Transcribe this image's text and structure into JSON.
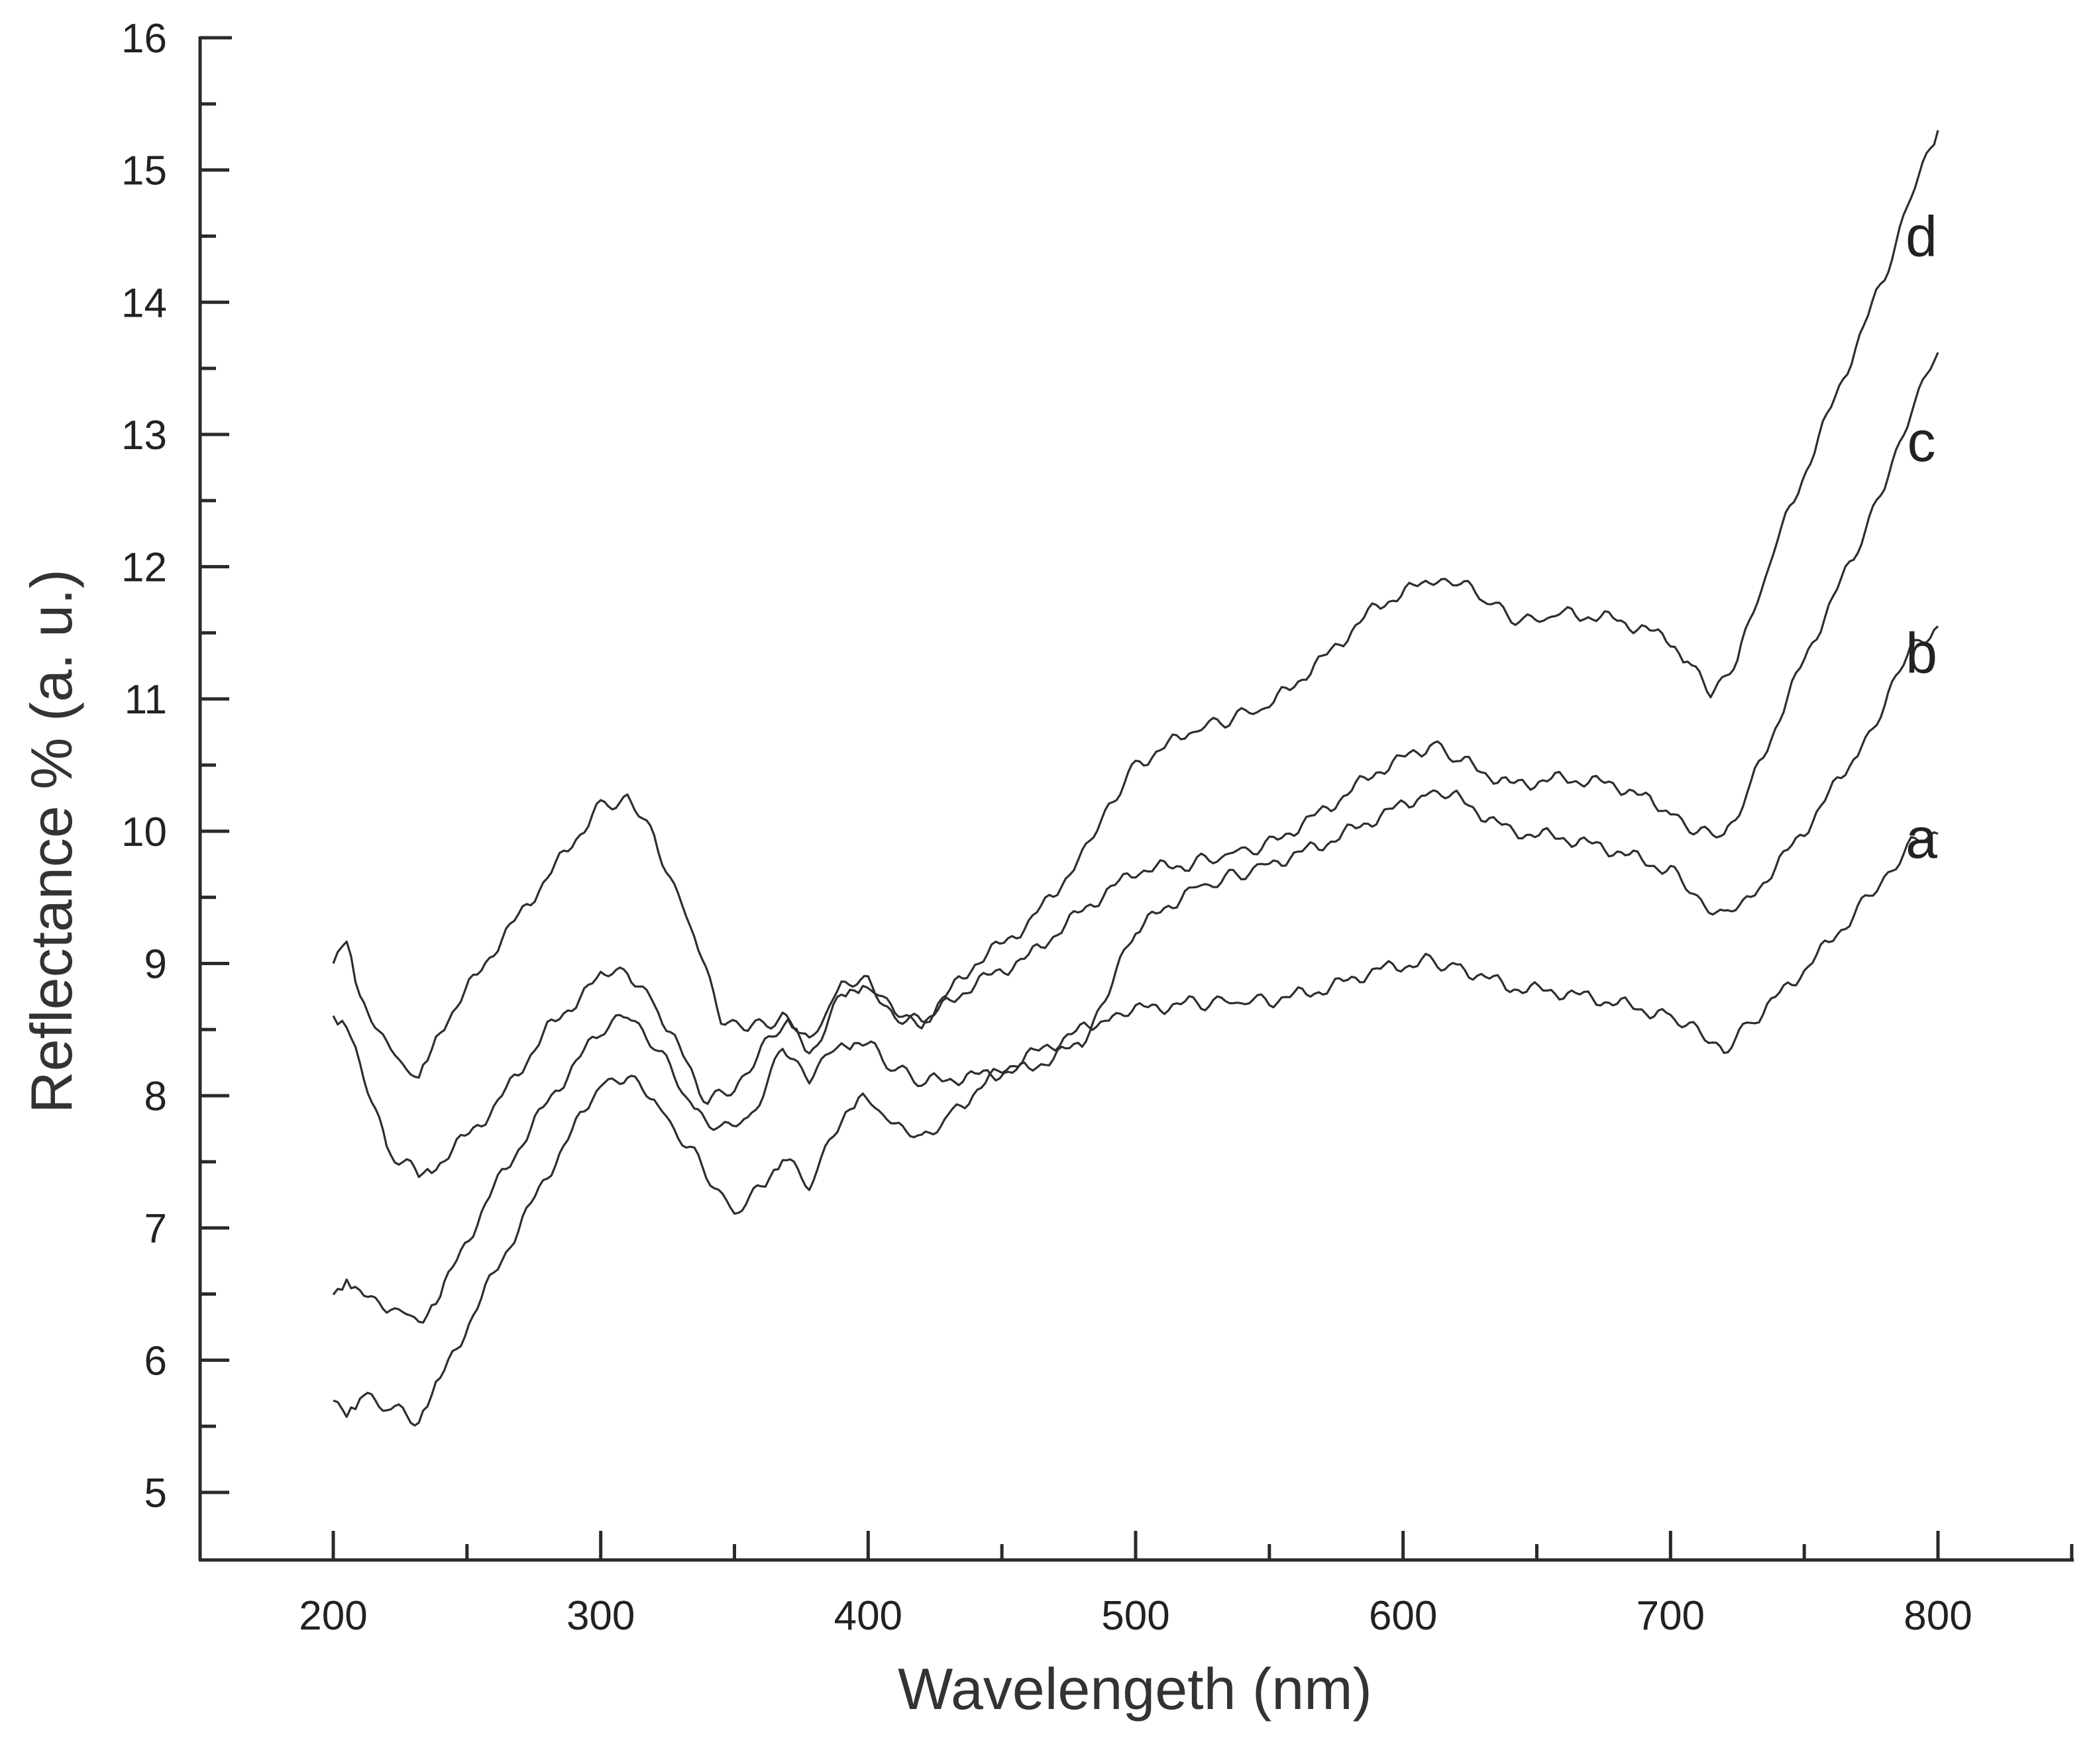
{
  "chart_data": {
    "type": "line",
    "title": "",
    "xlabel": "Wavelengeth (nm)",
    "ylabel": "Reflectance % (a. u.)",
    "xlim": [
      150,
      850
    ],
    "ylim": [
      4.5,
      16
    ],
    "x_ticks": [
      200,
      300,
      400,
      500,
      600,
      700,
      800
    ],
    "x_tick_labels": [
      "200",
      "300",
      "400",
      "500",
      "600",
      "700",
      "800"
    ],
    "y_ticks": [
      5,
      6,
      7,
      8,
      9,
      10,
      11,
      12,
      13,
      14,
      15,
      16
    ],
    "y_tick_labels": [
      "5",
      "6",
      "7",
      "8",
      "9",
      "10",
      "11",
      "12",
      "13",
      "14",
      "15",
      "16"
    ],
    "grid": false,
    "legend": "inline labels at right end of curves",
    "series": [
      {
        "name": "a",
        "label": "a",
        "x": [
          200,
          205,
          210,
          220,
          232,
          240,
          260,
          280,
          300,
          310,
          320,
          335,
          350,
          360,
          368,
          378,
          390,
          398,
          410,
          420,
          430,
          450,
          470,
          490,
          500,
          520,
          550,
          570,
          590,
          610,
          620,
          640,
          660,
          680,
          700,
          710,
          720,
          730,
          750,
          770,
          780,
          790,
          800
        ],
        "y": [
          5.75,
          5.62,
          5.72,
          5.65,
          5.55,
          5.85,
          6.65,
          7.4,
          8.1,
          8.15,
          7.95,
          7.55,
          7.1,
          7.3,
          7.55,
          7.3,
          7.85,
          7.98,
          7.8,
          7.65,
          7.85,
          8.2,
          8.4,
          8.6,
          8.65,
          8.7,
          8.72,
          8.8,
          8.95,
          9.02,
          8.98,
          8.82,
          8.78,
          8.7,
          8.6,
          8.48,
          8.35,
          8.55,
          8.95,
          9.4,
          9.65,
          9.9,
          9.98
        ]
      },
      {
        "name": "b",
        "label": "b",
        "x": [
          200,
          205,
          210,
          220,
          232,
          240,
          260,
          280,
          300,
          310,
          320,
          335,
          345,
          355,
          368,
          378,
          390,
          398,
          410,
          420,
          440,
          460,
          480,
          490,
          500,
          520,
          550,
          570,
          590,
          610,
          620,
          640,
          660,
          680,
          700,
          710,
          720,
          730,
          750,
          770,
          780,
          790,
          800
        ],
        "y": [
          6.5,
          6.6,
          6.55,
          6.4,
          6.3,
          6.5,
          7.3,
          7.95,
          8.5,
          8.6,
          8.4,
          7.9,
          7.75,
          7.8,
          8.35,
          8.15,
          8.4,
          8.42,
          8.2,
          8.1,
          8.15,
          8.2,
          8.4,
          8.8,
          9.25,
          9.55,
          9.75,
          9.9,
          10.1,
          10.3,
          10.25,
          10.0,
          9.95,
          9.85,
          9.7,
          9.5,
          9.35,
          9.5,
          10.0,
          10.6,
          10.95,
          11.4,
          11.55
        ]
      },
      {
        "name": "c",
        "label": "c",
        "x": [
          200,
          205,
          210,
          220,
          232,
          240,
          260,
          280,
          300,
          310,
          320,
          340,
          350,
          360,
          370,
          378,
          390,
          398,
          410,
          420,
          440,
          460,
          480,
          500,
          520,
          550,
          570,
          590,
          610,
          620,
          640,
          660,
          680,
          700,
          710,
          720,
          730,
          750,
          770,
          780,
          790,
          800
        ],
        "y": [
          8.55,
          8.5,
          8.25,
          7.6,
          7.4,
          7.5,
          7.9,
          8.5,
          8.9,
          8.95,
          8.7,
          7.95,
          8.05,
          8.35,
          8.55,
          8.3,
          8.75,
          8.85,
          8.65,
          8.55,
          8.85,
          9.05,
          9.4,
          9.7,
          9.75,
          9.9,
          10.15,
          10.45,
          10.65,
          10.55,
          10.35,
          10.4,
          10.35,
          10.15,
          10.0,
          9.95,
          10.35,
          11.3,
          12.15,
          12.6,
          13.2,
          13.62
        ]
      },
      {
        "name": "d",
        "label": "d",
        "x": [
          200,
          205,
          210,
          220,
          232,
          240,
          260,
          280,
          300,
          310,
          320,
          335,
          345,
          355,
          368,
          378,
          390,
          400,
          410,
          420,
          440,
          460,
          480,
          490,
          500,
          520,
          550,
          570,
          590,
          610,
          620,
          630,
          645,
          660,
          680,
          700,
          708,
          715,
          725,
          740,
          760,
          780,
          790,
          800
        ],
        "y": [
          9.0,
          9.15,
          8.7,
          8.4,
          8.1,
          8.5,
          9.1,
          9.65,
          10.2,
          10.25,
          9.95,
          9.2,
          8.6,
          8.5,
          8.6,
          8.4,
          8.85,
          8.85,
          8.6,
          8.55,
          9.0,
          9.3,
          9.8,
          10.2,
          10.5,
          10.75,
          10.95,
          11.3,
          11.7,
          11.9,
          11.9,
          11.75,
          11.58,
          11.65,
          11.6,
          11.45,
          11.25,
          11.05,
          11.3,
          12.2,
          13.2,
          14.2,
          14.8,
          15.3
        ]
      }
    ]
  }
}
